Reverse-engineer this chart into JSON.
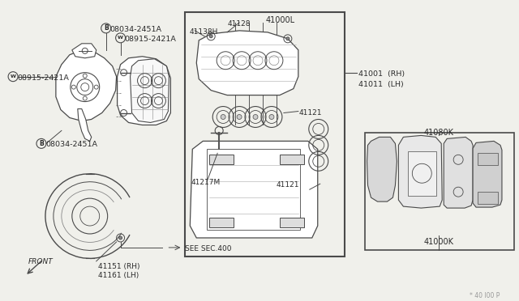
{
  "bg_color": "#f0f0eb",
  "line_color": "#4a4a4a",
  "text_color": "#2a2a2a",
  "labels": {
    "B_top": "08034-2451A",
    "W_top": "08915-2421A",
    "W_left": "08915-2421A",
    "B_bot": "08034-2451A",
    "41128": "41128",
    "41138H": "41138H",
    "41121_top": "41121",
    "41121_bot": "41121",
    "41217M": "41217M",
    "41000L": "41000L",
    "41001": "41001  (RH)",
    "41011": "41011  (LH)",
    "41080K": "41080K",
    "41000K": "41000K",
    "41151": "41151 (RH)",
    "41161": "41161 (LH)",
    "see_sec": "SEE SEC.400",
    "front": "FRONT",
    "watermark": "* 40 I00 P"
  }
}
